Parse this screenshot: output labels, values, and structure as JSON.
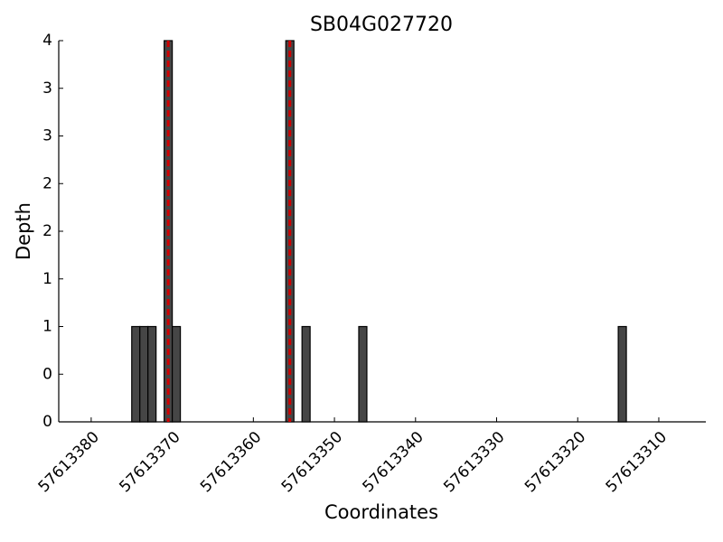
{
  "chart_data": {
    "type": "bar",
    "title": "SB04G027720",
    "x_label": "Coordinates",
    "y_label": "Depth",
    "x": [
      57613374,
      57613373,
      57613372,
      57613370,
      57613369,
      57613355,
      57613353,
      57613346,
      57613314
    ],
    "series": [
      {
        "color": "#464646",
        "values": [
          1,
          1,
          1,
          4,
          1,
          4,
          1,
          1,
          1
        ]
      }
    ],
    "markers": {
      "color": "#d00000",
      "x": [
        57613370.5,
        57613355.5
      ]
    },
    "xlim": [
      57613384,
      57613304.2
    ],
    "xticks": [
      57613380,
      57613370,
      57613360,
      57613350,
      57613340,
      57613330,
      57613320,
      57613310
    ],
    "ylim": [
      0,
      4
    ],
    "yticks": [
      0,
      {
        "value": 0.5,
        "label": "0"
      },
      1,
      {
        "value": 1.5,
        "label": "1"
      },
      2,
      {
        "value": 2.5,
        "label": "2"
      },
      3,
      {
        "value": 3.5,
        "label": "3"
      },
      4
    ],
    "grid": false
  }
}
